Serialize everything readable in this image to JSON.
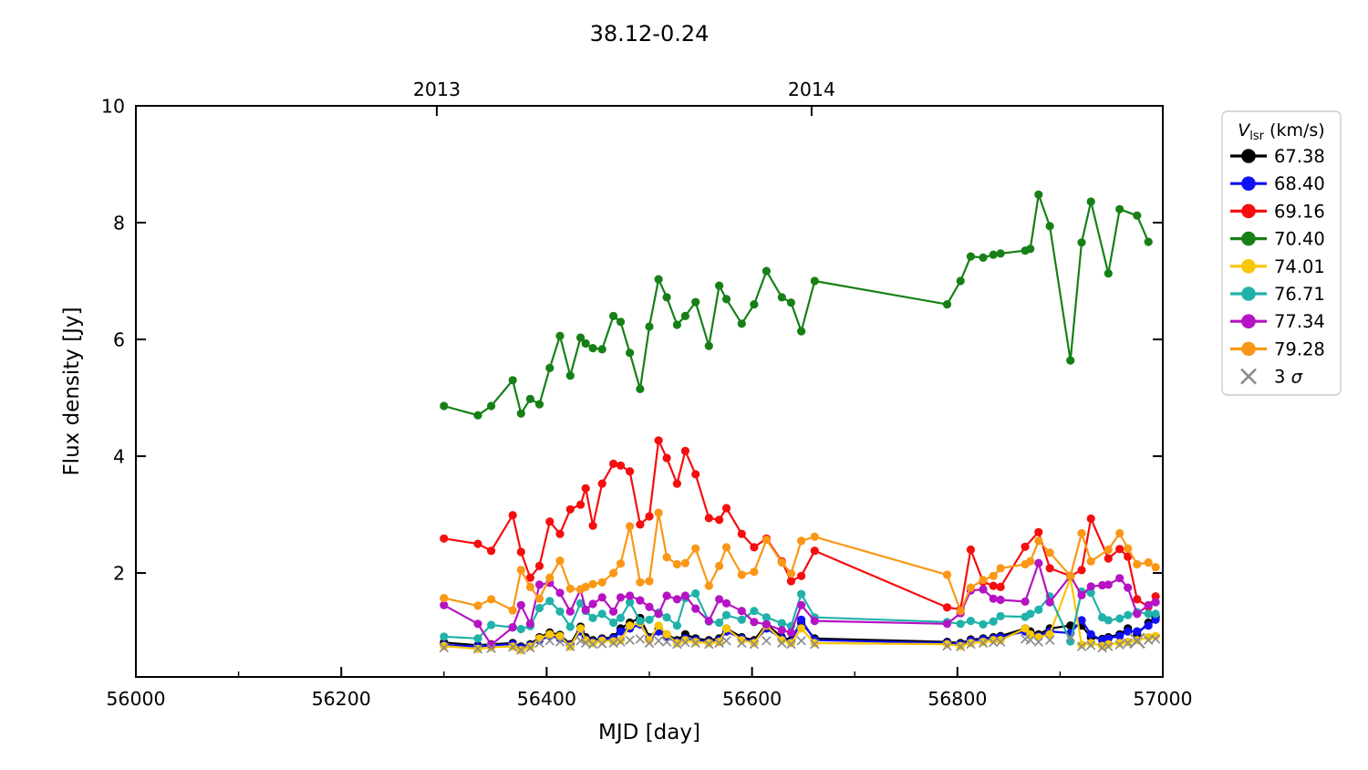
{
  "chart_data": {
    "type": "line",
    "title": "38.12-0.24",
    "xlabel": "MJD [day]",
    "ylabel": "Flux density [Jy]",
    "xlim": [
      56000,
      57000
    ],
    "ylim": [
      0.22,
      10
    ],
    "grid": false,
    "x_major_ticks": [
      56000,
      56200,
      56400,
      56600,
      56800,
      57000
    ],
    "x_minor_ticks": [
      56100,
      56300,
      56500,
      56700,
      56900
    ],
    "y_major_ticks": [
      2,
      4,
      6,
      8,
      10
    ],
    "top_axis_ticks": [
      {
        "mjd": 56293,
        "label": "2013"
      },
      {
        "mjd": 56658,
        "label": "2014"
      }
    ],
    "legend": {
      "title_var": "V",
      "title_sub": "lsr",
      "title_unit": " (km/s)",
      "sigma_prefix": "3 ",
      "sigma_symbol": "σ",
      "position": "outside-right"
    },
    "sigma_large_marker_mjd": 56975,
    "x": [
      56300,
      56333,
      56346,
      56367,
      56375,
      56384,
      56393,
      56403,
      56413,
      56423,
      56433,
      56438,
      56445,
      56454,
      56465,
      56472,
      56481,
      56491,
      56500,
      56509,
      56517,
      56527,
      56535,
      56545,
      56558,
      56568,
      56575,
      56590,
      56602,
      56614,
      56629,
      56638,
      56648,
      56661,
      56790,
      56803,
      56813,
      56825,
      56835,
      56842,
      56866,
      56871,
      56879,
      56890,
      56910,
      56921,
      56930,
      56941,
      56947,
      56958,
      56966,
      56975,
      56986,
      56993
    ],
    "series": [
      {
        "name": "67.38",
        "color": "#000000",
        "marker": "circle",
        "line": true,
        "values": [
          0.81,
          0.76,
          0.78,
          0.8,
          0.74,
          0.78,
          0.9,
          0.98,
          0.94,
          0.78,
          1.08,
          0.9,
          0.85,
          0.88,
          0.9,
          1.05,
          1.15,
          1.23,
          0.9,
          1.05,
          0.95,
          0.85,
          0.95,
          0.88,
          0.85,
          0.88,
          1.05,
          0.9,
          0.85,
          1.12,
          0.9,
          0.85,
          1.15,
          0.88,
          0.82,
          0.8,
          0.86,
          0.88,
          0.9,
          0.92,
          1.05,
          1.0,
          0.95,
          1.05,
          1.1,
          1.1,
          0.9,
          0.87,
          0.9,
          0.95,
          1.05,
          0.95,
          1.15,
          1.25
        ]
      },
      {
        "name": "68.40",
        "color": "#1010f5",
        "marker": "circle",
        "line": true,
        "values": [
          0.77,
          0.74,
          0.76,
          0.78,
          0.72,
          0.76,
          0.85,
          0.92,
          0.88,
          0.76,
          1.0,
          0.86,
          0.82,
          0.86,
          0.88,
          1.0,
          1.05,
          1.12,
          0.88,
          1.0,
          0.9,
          0.82,
          0.88,
          0.85,
          0.82,
          0.85,
          1.0,
          0.88,
          0.82,
          1.05,
          0.88,
          0.82,
          1.2,
          0.85,
          0.8,
          0.78,
          0.84,
          0.86,
          0.88,
          0.9,
          1.0,
          0.95,
          0.92,
          1.0,
          0.97,
          1.19,
          0.95,
          0.85,
          0.88,
          0.92,
          1.0,
          1.0,
          1.1,
          1.2
        ]
      },
      {
        "name": "69.16",
        "color": "#f60d0d",
        "marker": "circle",
        "line": true,
        "values": [
          2.59,
          2.5,
          2.38,
          2.99,
          2.36,
          1.92,
          2.12,
          2.88,
          2.67,
          3.09,
          3.17,
          3.45,
          2.81,
          3.53,
          3.87,
          3.84,
          3.74,
          2.83,
          2.97,
          4.27,
          3.97,
          3.53,
          4.09,
          3.69,
          2.94,
          2.91,
          3.11,
          2.67,
          2.44,
          2.59,
          2.2,
          1.86,
          1.95,
          2.38,
          1.41,
          1.38,
          2.4,
          1.85,
          1.78,
          1.76,
          2.45,
          null,
          2.7,
          2.08,
          1.95,
          2.05,
          2.93,
          null,
          2.25,
          2.41,
          2.28,
          1.55,
          1.42,
          1.6
        ]
      },
      {
        "name": "70.40",
        "color": "#168016",
        "marker": "circle",
        "line": true,
        "values": [
          4.86,
          4.7,
          4.86,
          5.3,
          4.73,
          4.98,
          4.89,
          5.51,
          6.06,
          5.38,
          6.03,
          5.93,
          5.85,
          5.83,
          6.4,
          6.3,
          5.77,
          5.15,
          6.22,
          7.03,
          6.72,
          6.25,
          6.4,
          6.64,
          5.89,
          6.92,
          6.69,
          6.27,
          6.6,
          7.17,
          6.72,
          6.63,
          6.14,
          7.0,
          6.6,
          7.0,
          7.42,
          7.4,
          7.45,
          7.47,
          7.52,
          7.55,
          8.48,
          7.94,
          5.64,
          7.66,
          8.36,
          null,
          7.13,
          8.23,
          null,
          8.12,
          7.67,
          null
        ]
      },
      {
        "name": "74.01",
        "color": "#f8c603",
        "marker": "circle",
        "line": true,
        "values": [
          0.75,
          0.7,
          0.73,
          0.74,
          0.68,
          0.74,
          0.88,
          0.95,
          0.92,
          0.74,
          1.05,
          0.85,
          0.8,
          0.84,
          0.83,
          0.85,
          1.1,
          1.15,
          0.85,
          1.1,
          0.95,
          0.8,
          0.85,
          0.82,
          0.8,
          0.82,
          1.05,
          0.85,
          0.8,
          1.1,
          0.85,
          0.8,
          1.05,
          0.8,
          0.78,
          0.75,
          0.8,
          0.82,
          0.85,
          0.85,
          1.05,
          0.95,
          0.9,
          0.95,
          1.92,
          0.77,
          0.8,
          0.75,
          0.78,
          0.8,
          0.82,
          0.85,
          0.9,
          0.92
        ]
      },
      {
        "name": "76.71",
        "color": "#20b2aa",
        "marker": "circle",
        "line": true,
        "values": [
          0.91,
          0.88,
          1.11,
          1.07,
          1.04,
          1.09,
          1.4,
          1.52,
          1.34,
          1.08,
          1.48,
          1.35,
          1.23,
          1.3,
          1.15,
          1.23,
          1.5,
          1.18,
          1.2,
          1.32,
          1.24,
          1.1,
          1.57,
          1.65,
          1.17,
          1.15,
          1.28,
          1.2,
          1.35,
          1.24,
          1.14,
          1.09,
          1.64,
          1.24,
          1.16,
          1.13,
          1.18,
          1.12,
          1.17,
          1.26,
          1.25,
          1.3,
          1.37,
          1.6,
          0.83,
          1.68,
          1.66,
          1.24,
          1.19,
          1.22,
          1.28,
          1.33,
          1.3,
          1.3
        ]
      },
      {
        "name": "77.34",
        "color": "#b513c3",
        "marker": "circle",
        "line": true,
        "values": [
          1.45,
          1.13,
          0.77,
          1.07,
          1.45,
          1.13,
          1.8,
          1.83,
          1.66,
          1.34,
          1.72,
          1.37,
          1.47,
          1.58,
          1.34,
          1.58,
          1.61,
          1.53,
          1.42,
          1.3,
          1.61,
          1.55,
          1.61,
          1.39,
          1.18,
          1.55,
          1.48,
          1.35,
          1.16,
          1.12,
          1.02,
          0.98,
          1.45,
          1.18,
          1.13,
          1.31,
          1.7,
          1.72,
          1.56,
          1.54,
          1.51,
          null,
          2.17,
          1.5,
          1.95,
          1.62,
          1.77,
          1.79,
          1.8,
          1.91,
          1.75,
          1.3,
          1.45,
          1.5
        ]
      },
      {
        "name": "79.28",
        "color": "#fa9715",
        "marker": "circle",
        "line": true,
        "values": [
          1.57,
          1.44,
          1.55,
          1.36,
          2.05,
          1.76,
          1.56,
          1.92,
          2.21,
          1.73,
          1.72,
          1.76,
          1.81,
          1.84,
          2.0,
          2.16,
          2.8,
          1.84,
          1.86,
          3.03,
          2.27,
          2.15,
          2.17,
          2.42,
          1.78,
          2.12,
          2.44,
          1.97,
          2.02,
          2.57,
          2.18,
          1.99,
          2.55,
          2.62,
          1.97,
          1.35,
          1.75,
          1.88,
          1.95,
          2.08,
          2.15,
          2.2,
          2.55,
          2.35,
          1.95,
          2.68,
          2.2,
          null,
          2.4,
          2.68,
          2.42,
          2.15,
          2.18,
          2.1
        ]
      },
      {
        "name": "3 σ",
        "color": "#8c8c8c",
        "marker": "x",
        "line": false,
        "values": [
          0.72,
          0.7,
          0.71,
          0.73,
          0.68,
          0.72,
          0.8,
          0.84,
          0.82,
          0.74,
          0.84,
          0.8,
          0.78,
          0.79,
          0.8,
          0.82,
          0.85,
          0.87,
          0.8,
          0.84,
          0.82,
          0.78,
          0.81,
          0.8,
          0.78,
          0.8,
          0.84,
          0.8,
          0.78,
          0.84,
          0.8,
          0.78,
          0.84,
          0.78,
          0.75,
          0.74,
          0.78,
          0.8,
          0.81,
          0.82,
          0.87,
          0.85,
          0.82,
          0.85,
          0.9,
          0.74,
          0.76,
          0.72,
          0.74,
          0.77,
          0.8,
          0.84,
          0.85,
          0.87
        ]
      }
    ]
  }
}
